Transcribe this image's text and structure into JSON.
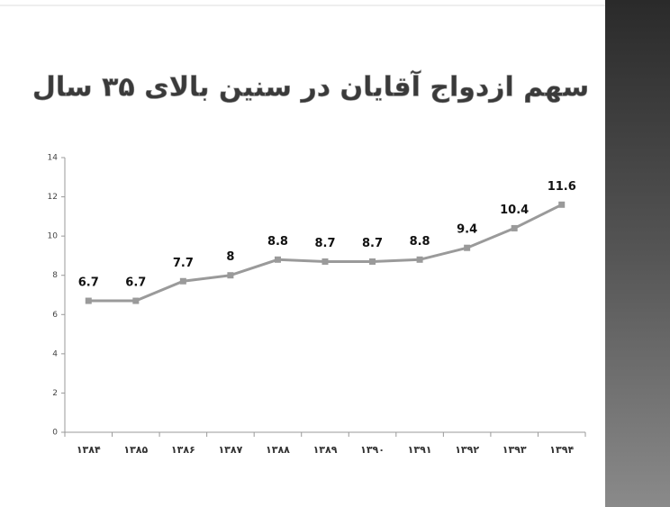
{
  "chart_data": {
    "type": "line",
    "title": "سهم ازدواج آقایان در سنین بالای ۳۵ سال",
    "categories": [
      "۱۳۸۴",
      "۱۳۸۵",
      "۱۳۸۶",
      "۱۳۸۷",
      "۱۳۸۸",
      "۱۳۸۹",
      "۱۳۹۰",
      "۱۳۹۱",
      "۱۳۹۲",
      "۱۳۹۳",
      "۱۳۹۴"
    ],
    "series": [
      {
        "color": "#9a9a9a",
        "values": [
          6.7,
          6.7,
          7.7,
          8,
          8.8,
          8.7,
          8.7,
          8.8,
          9.4,
          10.4,
          11.6
        ]
      }
    ],
    "ylim": [
      0,
      14
    ],
    "yticks": [
      0,
      2,
      4,
      6,
      8,
      10,
      12,
      14
    ],
    "grid": false
  }
}
